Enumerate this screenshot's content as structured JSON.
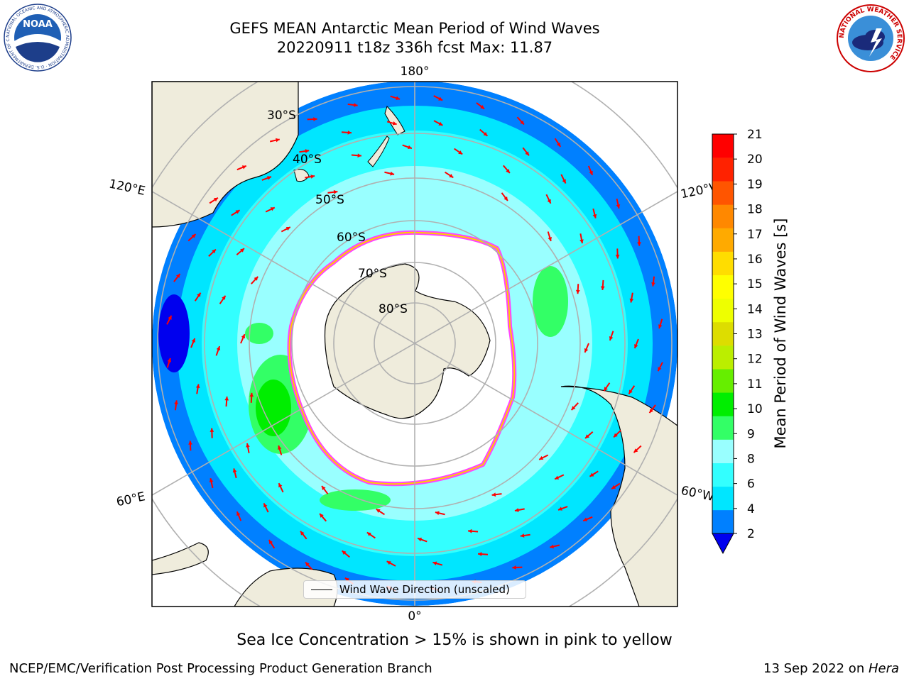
{
  "header": {
    "title_line1": "GEFS MEAN Antarctic Mean Period of Wind Waves",
    "title_line2": "20220911 t18z 336h fcst   Max: 11.87"
  },
  "logos": {
    "left": "NOAA",
    "left_ring_text": "NATIONAL OCEANIC AND ATMOSPHERIC ADMINISTRATION · U.S. DEPARTMENT OF COMMERCE",
    "right_ring_text": "NATIONAL WEATHER SERVICE"
  },
  "map": {
    "projection": "south-polar-stereographic",
    "latitude_labels": [
      "30°S",
      "40°S",
      "50°S",
      "60°S",
      "70°S",
      "80°S"
    ],
    "longitude_labels": {
      "top": "180°",
      "bottom": "0°",
      "left_upper": "120°E",
      "left_lower": "60°E",
      "right_upper": "120°W",
      "right_lower": "60°W"
    },
    "legend_label": "Wind Wave Direction (unscaled)",
    "arrow_color": "#ff0000",
    "land_color": "#efecdc",
    "ice_colors": [
      "#ff66ff",
      "#ff00cc",
      "#ffcc00",
      "#ffff66"
    ],
    "grid_color": "#b0b0b0"
  },
  "colorbar": {
    "label": "Mean Period of Wind Waves [s]",
    "ticks": [
      "2",
      "4",
      "6",
      "8",
      "9",
      "10",
      "11",
      "12",
      "13",
      "14",
      "15",
      "16",
      "17",
      "18",
      "19",
      "20",
      "21"
    ],
    "colors": [
      "#0080ff",
      "#00e6ff",
      "#33ffff",
      "#99ffff",
      "#33ff66",
      "#00ee00",
      "#66ee00",
      "#bbee00",
      "#dddd00",
      "#eeff00",
      "#ffff00",
      "#ffdd00",
      "#ffaa00",
      "#ff8800",
      "#ff5500",
      "#ff2200",
      "#ff0000"
    ],
    "under_color": "#0000ee"
  },
  "footer": {
    "ice_note": "Sea Ice Concentration > 15% is shown in pink to yellow",
    "left": "NCEP/EMC/Verification Post Processing Product Generation Branch",
    "date": "13 Sep 2022 on ",
    "machine": "Hera"
  }
}
